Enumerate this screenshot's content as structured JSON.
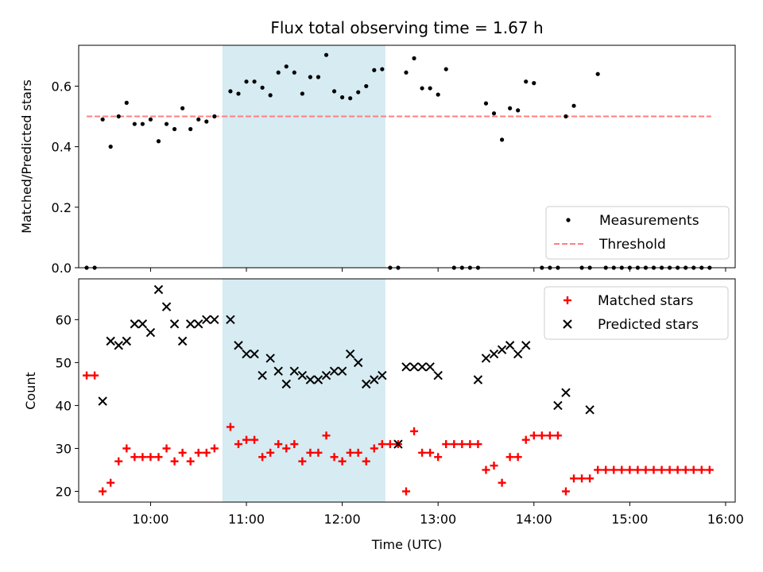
{
  "title": "Flux total observing time = 1.67 h",
  "colors": {
    "measure": "#000000",
    "threshold": "#ff7f7f",
    "matched": "#ff0000",
    "predicted": "#000000",
    "span": "#add8e6"
  },
  "chart_data": [
    {
      "type": "scatter",
      "title": "Flux total observing time = 1.67 h",
      "xlabel": "",
      "ylabel": "Matched/Predicted stars",
      "ylim": [
        0,
        0.735
      ],
      "yticks": [
        0.0,
        0.2,
        0.4,
        0.6
      ],
      "ytick_labels": [
        "0.0",
        "0.2",
        "0.4",
        "0.6"
      ],
      "highlight_span": [
        "10:45",
        "12:27"
      ],
      "threshold": {
        "name": "Threshold",
        "value": 0.5,
        "x_range": [
          "09:20",
          "15:51"
        ]
      },
      "legend": {
        "position": "lower right",
        "entries": [
          "Measurements",
          "Threshold"
        ]
      },
      "series": [
        {
          "name": "Measurements",
          "marker": "dot",
          "points": [
            [
              "09:20",
              0.0
            ],
            [
              "09:25",
              0.0
            ],
            [
              "09:30",
              0.49
            ],
            [
              "09:35",
              0.4
            ],
            [
              "09:40",
              0.5
            ],
            [
              "09:45",
              0.545
            ],
            [
              "09:50",
              0.475
            ],
            [
              "09:55",
              0.475
            ],
            [
              "10:00",
              0.49
            ],
            [
              "10:05",
              0.418
            ],
            [
              "10:10",
              0.475
            ],
            [
              "10:15",
              0.458
            ],
            [
              "10:20",
              0.527
            ],
            [
              "10:25",
              0.458
            ],
            [
              "10:30",
              0.49
            ],
            [
              "10:35",
              0.483
            ],
            [
              "10:40",
              0.5
            ],
            [
              "10:50",
              0.583
            ],
            [
              "10:55",
              0.575
            ],
            [
              "11:00",
              0.615
            ],
            [
              "11:05",
              0.615
            ],
            [
              "11:10",
              0.595
            ],
            [
              "11:15",
              0.57
            ],
            [
              "11:20",
              0.645
            ],
            [
              "11:25",
              0.665
            ],
            [
              "11:30",
              0.645
            ],
            [
              "11:35",
              0.575
            ],
            [
              "11:40",
              0.63
            ],
            [
              "11:45",
              0.63
            ],
            [
              "11:50",
              0.703
            ],
            [
              "11:55",
              0.583
            ],
            [
              "12:00",
              0.563
            ],
            [
              "12:05",
              0.56
            ],
            [
              "12:10",
              0.58
            ],
            [
              "12:15",
              0.6
            ],
            [
              "12:20",
              0.653
            ],
            [
              "12:25",
              0.656
            ],
            [
              "12:30",
              0.0
            ],
            [
              "12:35",
              0.0
            ],
            [
              "12:40",
              0.645
            ],
            [
              "12:45",
              0.692
            ],
            [
              "12:50",
              0.593
            ],
            [
              "12:55",
              0.593
            ],
            [
              "13:00",
              0.572
            ],
            [
              "13:05",
              0.656
            ],
            [
              "13:10",
              0.0
            ],
            [
              "13:15",
              0.0
            ],
            [
              "13:20",
              0.0
            ],
            [
              "13:25",
              0.0
            ],
            [
              "13:30",
              0.543
            ],
            [
              "13:35",
              0.51
            ],
            [
              "13:40",
              0.423
            ],
            [
              "13:45",
              0.527
            ],
            [
              "13:50",
              0.52
            ],
            [
              "13:55",
              0.615
            ],
            [
              "14:00",
              0.61
            ],
            [
              "14:05",
              0.0
            ],
            [
              "14:10",
              0.0
            ],
            [
              "14:15",
              0.0
            ],
            [
              "14:20",
              0.5
            ],
            [
              "14:25",
              0.535
            ],
            [
              "14:30",
              0.0
            ],
            [
              "14:35",
              0.0
            ],
            [
              "14:40",
              0.64
            ],
            [
              "14:45",
              0.0
            ],
            [
              "14:50",
              0.0
            ],
            [
              "14:55",
              0.0
            ],
            [
              "15:00",
              0.0
            ],
            [
              "15:05",
              0.0
            ],
            [
              "15:10",
              0.0
            ],
            [
              "15:15",
              0.0
            ],
            [
              "15:20",
              0.0
            ],
            [
              "15:25",
              0.0
            ],
            [
              "15:30",
              0.0
            ],
            [
              "15:35",
              0.0
            ],
            [
              "15:40",
              0.0
            ],
            [
              "15:45",
              0.0
            ],
            [
              "15:50",
              0.0
            ]
          ]
        }
      ]
    },
    {
      "type": "scatter",
      "xlabel": "Time (UTC)",
      "ylabel": "Count",
      "ylim": [
        17.5,
        69.5
      ],
      "yticks": [
        20,
        30,
        40,
        50,
        60
      ],
      "ytick_labels": [
        "20",
        "30",
        "40",
        "50",
        "60"
      ],
      "xticks": [
        "10:00",
        "11:00",
        "12:00",
        "13:00",
        "14:00",
        "15:00",
        "16:00"
      ],
      "xtick_labels": [
        "10:00",
        "11:00",
        "12:00",
        "13:00",
        "14:00",
        "15:00",
        "16:00"
      ],
      "xlim": [
        "09:15",
        "16:06"
      ],
      "highlight_span": [
        "10:45",
        "12:27"
      ],
      "legend": {
        "position": "upper right",
        "entries": [
          "Matched stars",
          "Predicted stars"
        ]
      },
      "series": [
        {
          "name": "Matched stars",
          "marker": "plus",
          "points": [
            [
              "09:20",
              47
            ],
            [
              "09:25",
              47
            ],
            [
              "09:30",
              20
            ],
            [
              "09:35",
              22
            ],
            [
              "09:40",
              27
            ],
            [
              "09:45",
              30
            ],
            [
              "09:50",
              28
            ],
            [
              "09:55",
              28
            ],
            [
              "10:00",
              28
            ],
            [
              "10:05",
              28
            ],
            [
              "10:10",
              30
            ],
            [
              "10:15",
              27
            ],
            [
              "10:20",
              29
            ],
            [
              "10:25",
              27
            ],
            [
              "10:30",
              29
            ],
            [
              "10:35",
              29
            ],
            [
              "10:40",
              30
            ],
            [
              "10:50",
              35
            ],
            [
              "10:55",
              31
            ],
            [
              "11:00",
              32
            ],
            [
              "11:05",
              32
            ],
            [
              "11:10",
              28
            ],
            [
              "11:15",
              29
            ],
            [
              "11:20",
              31
            ],
            [
              "11:25",
              30
            ],
            [
              "11:30",
              31
            ],
            [
              "11:35",
              27
            ],
            [
              "11:40",
              29
            ],
            [
              "11:45",
              29
            ],
            [
              "11:50",
              33
            ],
            [
              "11:55",
              28
            ],
            [
              "12:00",
              27
            ],
            [
              "12:05",
              29
            ],
            [
              "12:10",
              29
            ],
            [
              "12:15",
              27
            ],
            [
              "12:20",
              30
            ],
            [
              "12:25",
              31
            ],
            [
              "12:30",
              31
            ],
            [
              "12:35",
              31
            ],
            [
              "12:40",
              20
            ],
            [
              "12:45",
              34
            ],
            [
              "12:50",
              29
            ],
            [
              "12:55",
              29
            ],
            [
              "13:00",
              28
            ],
            [
              "13:05",
              31
            ],
            [
              "13:10",
              31
            ],
            [
              "13:15",
              31
            ],
            [
              "13:20",
              31
            ],
            [
              "13:25",
              31
            ],
            [
              "13:30",
              25
            ],
            [
              "13:35",
              26
            ],
            [
              "13:40",
              22
            ],
            [
              "13:45",
              28
            ],
            [
              "13:50",
              28
            ],
            [
              "13:55",
              32
            ],
            [
              "14:00",
              33
            ],
            [
              "14:05",
              33
            ],
            [
              "14:10",
              33
            ],
            [
              "14:15",
              33
            ],
            [
              "14:20",
              20
            ],
            [
              "14:25",
              23
            ],
            [
              "14:30",
              23
            ],
            [
              "14:35",
              23
            ],
            [
              "14:40",
              25
            ],
            [
              "14:45",
              25
            ],
            [
              "14:50",
              25
            ],
            [
              "14:55",
              25
            ],
            [
              "15:00",
              25
            ],
            [
              "15:05",
              25
            ],
            [
              "15:10",
              25
            ],
            [
              "15:15",
              25
            ],
            [
              "15:20",
              25
            ],
            [
              "15:25",
              25
            ],
            [
              "15:30",
              25
            ],
            [
              "15:35",
              25
            ],
            [
              "15:40",
              25
            ],
            [
              "15:45",
              25
            ],
            [
              "15:50",
              25
            ]
          ]
        },
        {
          "name": "Predicted stars",
          "marker": "x",
          "points": [
            [
              "09:30",
              41
            ],
            [
              "09:35",
              55
            ],
            [
              "09:40",
              54
            ],
            [
              "09:45",
              55
            ],
            [
              "09:50",
              59
            ],
            [
              "09:55",
              59
            ],
            [
              "10:00",
              57
            ],
            [
              "10:05",
              67
            ],
            [
              "10:10",
              63
            ],
            [
              "10:15",
              59
            ],
            [
              "10:20",
              55
            ],
            [
              "10:25",
              59
            ],
            [
              "10:30",
              59
            ],
            [
              "10:35",
              60
            ],
            [
              "10:40",
              60
            ],
            [
              "10:50",
              60
            ],
            [
              "10:55",
              54
            ],
            [
              "11:00",
              52
            ],
            [
              "11:05",
              52
            ],
            [
              "11:10",
              47
            ],
            [
              "11:15",
              51
            ],
            [
              "11:20",
              48
            ],
            [
              "11:25",
              45
            ],
            [
              "11:30",
              48
            ],
            [
              "11:35",
              47
            ],
            [
              "11:40",
              46
            ],
            [
              "11:45",
              46
            ],
            [
              "11:50",
              47
            ],
            [
              "11:55",
              48
            ],
            [
              "12:00",
              48
            ],
            [
              "12:05",
              52
            ],
            [
              "12:10",
              50
            ],
            [
              "12:15",
              45
            ],
            [
              "12:20",
              46
            ],
            [
              "12:25",
              47
            ],
            [
              "12:35",
              31
            ],
            [
              "12:40",
              49
            ],
            [
              "12:45",
              49
            ],
            [
              "12:50",
              49
            ],
            [
              "12:55",
              49
            ],
            [
              "13:00",
              47
            ],
            [
              "13:25",
              46
            ],
            [
              "13:30",
              51
            ],
            [
              "13:35",
              52
            ],
            [
              "13:40",
              53
            ],
            [
              "13:45",
              54
            ],
            [
              "13:50",
              52
            ],
            [
              "13:55",
              54
            ],
            [
              "14:15",
              40
            ],
            [
              "14:20",
              43
            ],
            [
              "14:35",
              39
            ]
          ]
        }
      ]
    }
  ]
}
